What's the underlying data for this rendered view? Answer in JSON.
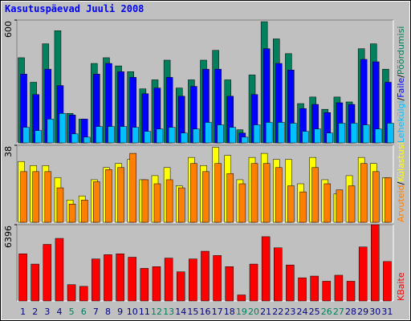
{
  "title": "Kasutuspäevad Juuli 2008",
  "chart_data": [
    {
      "type": "bar",
      "ylim": [
        0,
        600
      ],
      "yticks": [
        600
      ],
      "legend_separator": "/",
      "series": [
        {
          "name": "Pöördumisi",
          "color": "#00805c",
          "values": [
            416,
            296,
            484,
            548,
            144,
            116,
            388,
            416,
            376,
            348,
            264,
            308,
            404,
            268,
            308,
            404,
            452,
            308,
            64,
            332,
            592,
            508,
            436,
            192,
            224,
            164,
            224,
            200,
            460,
            484,
            360
          ]
        },
        {
          "name": "Faile",
          "color": "#0000ff",
          "values": [
            336,
            236,
            360,
            280,
            136,
            116,
            336,
            388,
            348,
            320,
            240,
            268,
            320,
            228,
            276,
            360,
            360,
            228,
            48,
            236,
            460,
            388,
            356,
            168,
            188,
            148,
            196,
            188,
            408,
            396,
            296
          ]
        },
        {
          "name": "Lehekülgi",
          "color": "#00c0ff",
          "values": [
            76,
            60,
            116,
            144,
            44,
            28,
            80,
            80,
            80,
            76,
            56,
            68,
            76,
            48,
            68,
            100,
            88,
            76,
            28,
            88,
            100,
            100,
            96,
            56,
            68,
            48,
            96,
            96,
            88,
            68,
            96
          ]
        }
      ]
    },
    {
      "type": "bar",
      "ylim": [
        0,
        38
      ],
      "yticks": [
        38
      ],
      "legend_separator": "/",
      "series": [
        {
          "name": "Külastusi",
          "color": "#ffff00",
          "values": [
            30,
            28,
            28,
            22,
            11,
            13,
            21,
            27,
            29,
            31,
            21,
            23,
            27,
            18,
            32,
            28,
            37,
            33,
            21,
            32,
            34,
            31,
            31,
            19,
            32,
            21,
            14,
            23,
            32,
            29,
            22
          ]
        },
        {
          "name": "Arvuteid",
          "color": "#ff8000",
          "values": [
            25,
            25,
            25,
            17,
            9,
            11,
            20,
            26,
            27,
            34,
            21,
            19,
            21,
            17,
            29,
            25,
            29,
            24,
            19,
            29,
            29,
            27,
            18,
            15,
            27,
            19,
            16,
            18,
            29,
            25,
            22
          ]
        }
      ]
    },
    {
      "type": "bar",
      "ylim": [
        0,
        6396
      ],
      "yticks": [
        6396
      ],
      "categories": [
        "1",
        "2",
        "3",
        "4",
        "5",
        "6",
        "7",
        "8",
        "9",
        "10",
        "11",
        "12",
        "13",
        "14",
        "15",
        "16",
        "17",
        "18",
        "19",
        "20",
        "21",
        "22",
        "23",
        "24",
        "25",
        "26",
        "27",
        "28",
        "29",
        "30",
        "31"
      ],
      "category_colors": [
        "#000080",
        "#000080",
        "#000080",
        "#000080",
        "#00805c",
        "#00805c",
        "#000080",
        "#000080",
        "#000080",
        "#000080",
        "#000080",
        "#00805c",
        "#00805c",
        "#000080",
        "#000080",
        "#000080",
        "#000080",
        "#000080",
        "#00805c",
        "#00805c",
        "#000080",
        "#000080",
        "#000080",
        "#000080",
        "#000080",
        "#00805c",
        "#00805c",
        "#000080",
        "#000080",
        "#000080",
        "#000080"
      ],
      "series": [
        {
          "name": "KBaite",
          "color": "#ff0000",
          "values": [
            3954,
            3091,
            4745,
            5248,
            1366,
            1222,
            3523,
            3882,
            3954,
            3667,
            2732,
            2876,
            3595,
            2444,
            3523,
            4170,
            3810,
            2876,
            503,
            3091,
            5392,
            4457,
            3019,
            1941,
            2085,
            1653,
            2157,
            1653,
            4529,
            6396,
            3307
          ]
        }
      ]
    }
  ]
}
